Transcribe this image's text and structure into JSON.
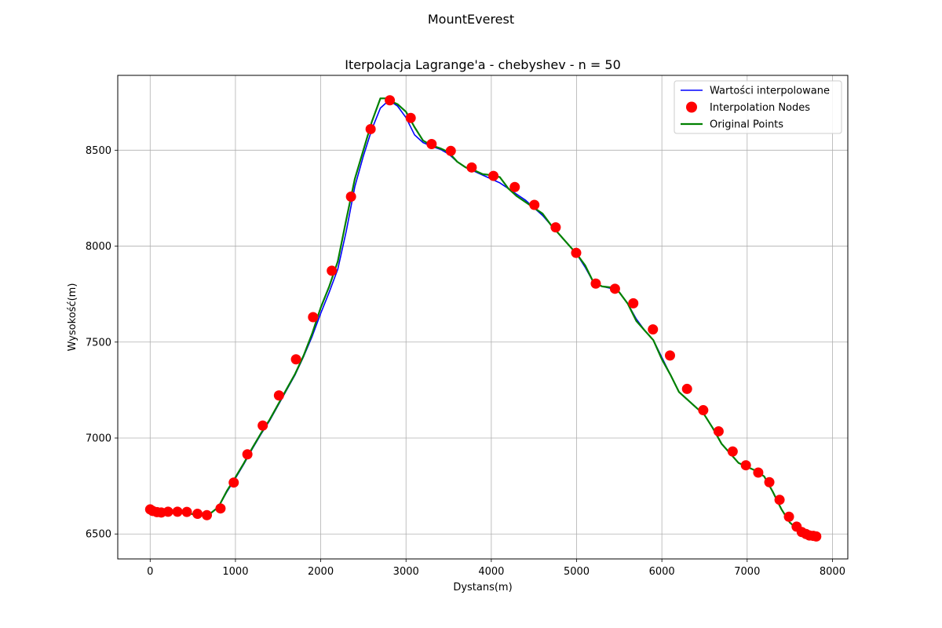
{
  "figure": {
    "suptitle": "MountEverest"
  },
  "chart_data": {
    "type": "line",
    "title": "Iterpolacja Lagrange'a - chebyshev - n = 50",
    "xlabel": "Dystans(m)",
    "ylabel": "Wysokość(m)",
    "xlim": [
      -380,
      8180
    ],
    "ylim": [
      6370,
      8890
    ],
    "xticks": [
      0,
      1000,
      2000,
      3000,
      4000,
      5000,
      6000,
      7000,
      8000
    ],
    "yticks": [
      6500,
      7000,
      7500,
      8000,
      8500
    ],
    "grid": true,
    "legend_position": "top-right",
    "series": [
      {
        "name": "Wartości interpolowane",
        "kind": "line",
        "color": "#0000ff",
        "x": [
          0,
          100,
          200,
          300,
          400,
          500,
          600,
          700,
          800,
          900,
          1000,
          1100,
          1200,
          1300,
          1400,
          1500,
          1600,
          1700,
          1800,
          1900,
          2000,
          2100,
          2200,
          2300,
          2400,
          2500,
          2600,
          2700,
          2800,
          2900,
          3000,
          3100,
          3200,
          3300,
          3400,
          3500,
          3600,
          3700,
          3800,
          3900,
          4000,
          4100,
          4200,
          4300,
          4400,
          4500,
          4600,
          4700,
          4800,
          4900,
          5000,
          5100,
          5200,
          5300,
          5400,
          5500,
          5600,
          5700,
          5800,
          5900,
          6000,
          6100,
          6200,
          6300,
          6400,
          6500,
          6600,
          6700,
          6800,
          6900,
          7000,
          7100,
          7200,
          7300,
          7400,
          7500,
          7600,
          7700,
          7810
        ],
        "values": [
          6628,
          6614,
          6615,
          6617,
          6612,
          6603,
          6597,
          6605,
          6640,
          6720,
          6790,
          6865,
          6945,
          7020,
          7090,
          7170,
          7250,
          7330,
          7425,
          7530,
          7650,
          7760,
          7880,
          8080,
          8310,
          8470,
          8610,
          8720,
          8760,
          8730,
          8670,
          8580,
          8540,
          8520,
          8505,
          8480,
          8440,
          8410,
          8390,
          8370,
          8350,
          8330,
          8300,
          8270,
          8240,
          8200,
          8160,
          8110,
          8060,
          8010,
          7960,
          7890,
          7810,
          7790,
          7780,
          7760,
          7700,
          7620,
          7560,
          7510,
          7420,
          7330,
          7240,
          7200,
          7160,
          7120,
          7050,
          6970,
          6920,
          6870,
          6850,
          6830,
          6800,
          6720,
          6630,
          6560,
          6520,
          6500,
          6492
        ]
      },
      {
        "name": "Interpolation Nodes",
        "kind": "scatter",
        "color": "#ff0000",
        "x": [
          0,
          30,
          80,
          130,
          210,
          320,
          430,
          555,
          665,
          825,
          980,
          1140,
          1320,
          1510,
          1710,
          1910,
          2130,
          2355,
          2585,
          2810,
          3055,
          3300,
          3525,
          3770,
          4025,
          4275,
          4505,
          4755,
          4995,
          5225,
          5450,
          5665,
          5895,
          6095,
          6295,
          6485,
          6665,
          6830,
          6985,
          7130,
          7260,
          7380,
          7490,
          7580,
          7640,
          7690,
          7730,
          7775,
          7810
        ],
        "values": [
          6628,
          6620,
          6614,
          6612,
          6616,
          6616,
          6615,
          6605,
          6598,
          6633,
          6768,
          6915,
          7065,
          7222,
          7410,
          7630,
          7872,
          8258,
          8610,
          8760,
          8668,
          8532,
          8496,
          8410,
          8366,
          8308,
          8215,
          8098,
          7965,
          7805,
          7778,
          7702,
          7566,
          7430,
          7256,
          7145,
          7035,
          6930,
          6858,
          6820,
          6770,
          6678,
          6590,
          6538,
          6510,
          6500,
          6492,
          6490,
          6487
        ]
      },
      {
        "name": "Original Points",
        "kind": "line",
        "color": "#008000",
        "x": [
          0,
          100,
          200,
          300,
          400,
          500,
          600,
          700,
          800,
          900,
          1000,
          1100,
          1200,
          1300,
          1400,
          1500,
          1600,
          1700,
          1800,
          1900,
          2000,
          2100,
          2200,
          2300,
          2400,
          2500,
          2600,
          2700,
          2780,
          2800,
          2900,
          3000,
          3100,
          3200,
          3300,
          3400,
          3500,
          3600,
          3700,
          3800,
          3900,
          4000,
          4100,
          4200,
          4300,
          4400,
          4500,
          4600,
          4700,
          4800,
          4900,
          5000,
          5100,
          5200,
          5300,
          5400,
          5500,
          5600,
          5700,
          5800,
          5900,
          6000,
          6100,
          6200,
          6300,
          6400,
          6500,
          6600,
          6700,
          6800,
          6900,
          7000,
          7100,
          7200,
          7300,
          7400,
          7500,
          7600,
          7700,
          7810
        ],
        "values": [
          6628,
          6614,
          6615,
          6617,
          6612,
          6603,
          6597,
          6605,
          6640,
          6725,
          6795,
          6870,
          6950,
          7025,
          7095,
          7175,
          7255,
          7335,
          7430,
          7545,
          7680,
          7790,
          7920,
          8140,
          8350,
          8500,
          8650,
          8770,
          8770,
          8760,
          8740,
          8700,
          8620,
          8550,
          8525,
          8510,
          8490,
          8440,
          8410,
          8395,
          8375,
          8370,
          8360,
          8300,
          8260,
          8230,
          8200,
          8170,
          8110,
          8060,
          8010,
          7960,
          7900,
          7810,
          7790,
          7785,
          7760,
          7700,
          7610,
          7560,
          7510,
          7410,
          7330,
          7240,
          7200,
          7160,
          7120,
          7050,
          6970,
          6920,
          6870,
          6850,
          6830,
          6800,
          6720,
          6630,
          6560,
          6520,
          6500,
          6490
        ]
      }
    ]
  }
}
